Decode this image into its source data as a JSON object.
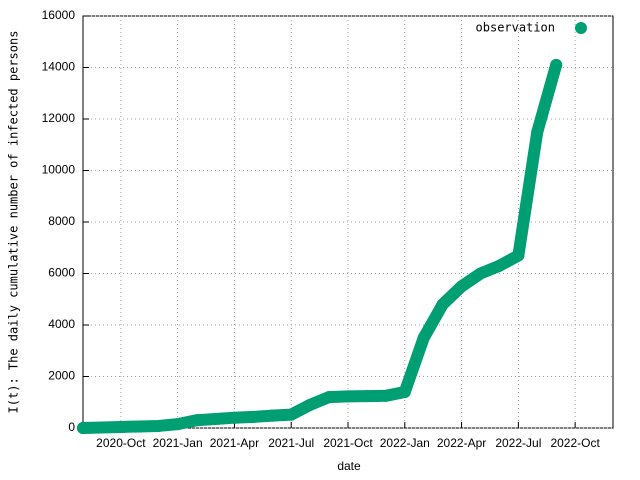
{
  "chart_data": {
    "type": "scatter",
    "x_label": "date",
    "y_label": "I(t): The daily cumulative number of infected persons",
    "x": [
      "2020-08",
      "2020-09",
      "2020-10",
      "2020-11",
      "2020-12",
      "2021-01",
      "2021-02",
      "2021-03",
      "2021-04",
      "2021-05",
      "2021-06",
      "2021-07",
      "2021-08",
      "2021-09",
      "2021-10",
      "2021-11",
      "2021-12",
      "2022-01",
      "2022-02",
      "2022-03",
      "2022-04",
      "2022-05",
      "2022-06",
      "2022-07",
      "2022-08",
      "2022-09"
    ],
    "series": [
      {
        "name": "observation",
        "color": "#009e73",
        "values": [
          0,
          20,
          40,
          60,
          80,
          150,
          300,
          350,
          400,
          430,
          480,
          520,
          900,
          1200,
          1230,
          1240,
          1250,
          1400,
          3500,
          4800,
          5500,
          6000,
          6300,
          6700,
          11500,
          14100
        ]
      }
    ],
    "xlim": [
      "2020-08",
      "2022-12"
    ],
    "xticks": [
      {
        "value": "2020-10",
        "label": "2020-Oct"
      },
      {
        "value": "2021-01",
        "label": "2021-Jan"
      },
      {
        "value": "2021-04",
        "label": "2021-Apr"
      },
      {
        "value": "2021-07",
        "label": "2021-Jul"
      },
      {
        "value": "2021-10",
        "label": "2021-Oct"
      },
      {
        "value": "2022-01",
        "label": "2022-Jan"
      },
      {
        "value": "2022-04",
        "label": "2022-Apr"
      },
      {
        "value": "2022-07",
        "label": "2022-Jul"
      },
      {
        "value": "2022-10",
        "label": "2022-Oct"
      }
    ],
    "ylim": [
      0,
      16000
    ],
    "yticks": [
      0,
      2000,
      4000,
      6000,
      8000,
      10000,
      12000,
      14000,
      16000
    ],
    "grid": true,
    "legend": "top-right"
  }
}
